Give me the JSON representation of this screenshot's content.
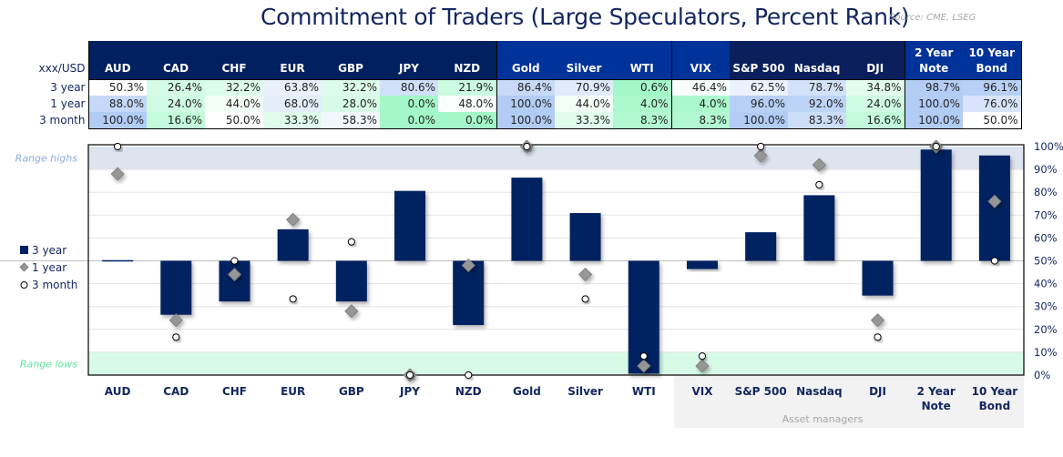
{
  "title": "Commitment of Traders (Large Speculators, Percent Rank)",
  "source": "Source: CME, LSEG",
  "table": {
    "corner": "xxx/USD",
    "headers": [
      {
        "l1": "",
        "l2": "AUD",
        "group": "fx"
      },
      {
        "l1": "",
        "l2": "CAD",
        "group": "fx"
      },
      {
        "l1": "",
        "l2": "CHF",
        "group": "fx"
      },
      {
        "l1": "",
        "l2": "EUR",
        "group": "fx"
      },
      {
        "l1": "",
        "l2": "GBP",
        "group": "fx"
      },
      {
        "l1": "",
        "l2": "JPY",
        "group": "fx"
      },
      {
        "l1": "",
        "l2": "NZD",
        "group": "fx"
      },
      {
        "l1": "",
        "l2": "Gold",
        "group": "cmd"
      },
      {
        "l1": "",
        "l2": "Silver",
        "group": "cmd"
      },
      {
        "l1": "",
        "l2": "WTI",
        "group": "cmd"
      },
      {
        "l1": "",
        "l2": "VIX",
        "group": "cmd"
      },
      {
        "l1": "",
        "l2": "S&P 500",
        "group": "eq"
      },
      {
        "l1": "",
        "l2": "Nasdaq",
        "group": "eq"
      },
      {
        "l1": "",
        "l2": "DJI",
        "group": "eq"
      },
      {
        "l1": "2 Year",
        "l2": "Note",
        "group": "cmd"
      },
      {
        "l1": "10 Year",
        "l2": "Bond",
        "group": "cmd"
      }
    ],
    "rows": [
      {
        "label": "3 year",
        "values": [
          "50.3%",
          "26.4%",
          "32.2%",
          "63.8%",
          "32.2%",
          "80.6%",
          "21.9%",
          "86.4%",
          "70.9%",
          "0.6%",
          "46.4%",
          "62.5%",
          "78.7%",
          "34.8%",
          "98.7%",
          "96.1%"
        ]
      },
      {
        "label": "1 year",
        "values": [
          "88.0%",
          "24.0%",
          "44.0%",
          "68.0%",
          "28.0%",
          "0.0%",
          "48.0%",
          "100.0%",
          "44.0%",
          "4.0%",
          "4.0%",
          "96.0%",
          "92.0%",
          "24.0%",
          "100.0%",
          "76.0%"
        ]
      },
      {
        "label": "3 month",
        "values": [
          "100.0%",
          "16.6%",
          "50.0%",
          "33.3%",
          "58.3%",
          "0.0%",
          "0.0%",
          "100.0%",
          "33.3%",
          "8.3%",
          "8.3%",
          "100.0%",
          "83.3%",
          "16.6%",
          "100.0%",
          "50.0%"
        ]
      }
    ]
  },
  "colors": {
    "header_fx": "#002060",
    "header_blue": "#003399",
    "header_eq": "#0a1f5c",
    "bar": "#002060",
    "diamond": "#969696",
    "high_band": "#dde4f0",
    "low_band": "#d8fbe8",
    "gray_box": "#f2f2f2"
  },
  "chart_data": {
    "type": "bar",
    "categories": [
      [
        "AUD"
      ],
      [
        "CAD"
      ],
      [
        "CHF"
      ],
      [
        "EUR"
      ],
      [
        "GBP"
      ],
      [
        "JPY"
      ],
      [
        "NZD"
      ],
      [
        "Gold"
      ],
      [
        "Silver"
      ],
      [
        "WTI"
      ],
      [
        "VIX"
      ],
      [
        "S&P 500"
      ],
      [
        "Nasdaq"
      ],
      [
        "DJI"
      ],
      [
        "2 Year",
        "Note"
      ],
      [
        "10 Year",
        "Bond"
      ]
    ],
    "baseline": 50,
    "series": [
      {
        "name": "3 year",
        "kind": "bar",
        "values": [
          50.3,
          26.4,
          32.2,
          63.8,
          32.2,
          80.6,
          21.9,
          86.4,
          70.9,
          0.6,
          46.4,
          62.5,
          78.7,
          34.8,
          98.7,
          96.1
        ]
      },
      {
        "name": "1 year",
        "kind": "diamond",
        "values": [
          88.0,
          24.0,
          44.0,
          68.0,
          28.0,
          0.0,
          48.0,
          100.0,
          44.0,
          4.0,
          4.0,
          96.0,
          92.0,
          24.0,
          100.0,
          76.0
        ]
      },
      {
        "name": "3 month",
        "kind": "circle",
        "values": [
          100.0,
          16.6,
          50.0,
          33.3,
          58.3,
          0.0,
          0.0,
          100.0,
          33.3,
          8.3,
          8.3,
          100.0,
          83.3,
          16.6,
          100.0,
          50.0
        ]
      }
    ],
    "ylim": [
      0,
      100
    ],
    "yticks": [
      "0%",
      "10%",
      "20%",
      "30%",
      "40%",
      "50%",
      "60%",
      "70%",
      "80%",
      "90%",
      "100%"
    ],
    "range_high_label": "Range highs",
    "range_low_label": "Range lows",
    "group_label": "Asset managers",
    "legend_position": "left",
    "grid": true
  }
}
